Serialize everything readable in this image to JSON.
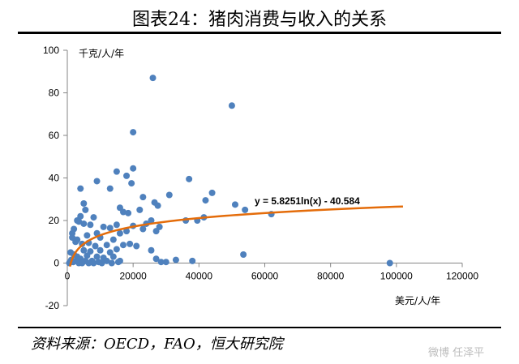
{
  "title": "图表24：猪肉消费与收入的关系",
  "source": "资料来源：OECD，FAO，恒大研究院",
  "watermark": "微博 任泽平",
  "chart_data": {
    "type": "scatter",
    "title": "",
    "xlabel": "美元/人/年",
    "ylabel": "千克/人/年",
    "xlim": [
      0,
      120000
    ],
    "ylim": [
      -20,
      100
    ],
    "xticks": [
      0,
      20000,
      40000,
      60000,
      80000,
      100000,
      120000
    ],
    "xtick_labels": [
      "0",
      "20000",
      "40000",
      "60000",
      "80000",
      "100000",
      "120000"
    ],
    "yticks": [
      -20,
      0,
      20,
      40,
      60,
      80,
      100
    ],
    "ytick_labels": [
      "-20",
      "0",
      "20",
      "40",
      "60",
      "80",
      "100"
    ],
    "grid": false,
    "point_color": "#4f81bd",
    "trend_color": "#e46c0a",
    "trendline": {
      "kind": "logarithmic",
      "a": 5.8251,
      "b": -40.584,
      "x_range": [
        800,
        102000
      ],
      "equation_label": "y = 5.8251ln(x) - 40.584"
    },
    "points": [
      [
        26000,
        87
      ],
      [
        50000,
        74
      ],
      [
        20000,
        61.5
      ],
      [
        20000,
        44.5
      ],
      [
        15000,
        43
      ],
      [
        18000,
        41
      ],
      [
        37000,
        39.5
      ],
      [
        9000,
        38.5
      ],
      [
        19500,
        37.5
      ],
      [
        4000,
        35
      ],
      [
        13000,
        35
      ],
      [
        44000,
        33
      ],
      [
        31000,
        32
      ],
      [
        23000,
        31
      ],
      [
        42000,
        29.5
      ],
      [
        26500,
        28.5
      ],
      [
        5000,
        28
      ],
      [
        27500,
        27
      ],
      [
        51000,
        27.5
      ],
      [
        16000,
        26
      ],
      [
        5500,
        25
      ],
      [
        22000,
        25
      ],
      [
        17000,
        24
      ],
      [
        18500,
        23.5
      ],
      [
        54000,
        25
      ],
      [
        62000,
        23
      ],
      [
        4000,
        22
      ],
      [
        8000,
        21.5
      ],
      [
        3000,
        20
      ],
      [
        36000,
        20
      ],
      [
        3500,
        19.5
      ],
      [
        39500,
        20
      ],
      [
        25500,
        20
      ],
      [
        41500,
        21.5
      ],
      [
        5000,
        18.5
      ],
      [
        7000,
        18
      ],
      [
        2000,
        16
      ],
      [
        15000,
        18
      ],
      [
        20000,
        17.5
      ],
      [
        24000,
        18.5
      ],
      [
        28000,
        17
      ],
      [
        11000,
        17
      ],
      [
        13000,
        16.5
      ],
      [
        1500,
        14
      ],
      [
        9000,
        14
      ],
      [
        6000,
        13
      ],
      [
        1500,
        12
      ],
      [
        3000,
        11
      ],
      [
        10000,
        12
      ],
      [
        14000,
        11
      ],
      [
        23000,
        16
      ],
      [
        27000,
        15
      ],
      [
        16000,
        14
      ],
      [
        18000,
        15
      ],
      [
        2500,
        10
      ],
      [
        4500,
        9
      ],
      [
        6500,
        9.5
      ],
      [
        8500,
        8
      ],
      [
        12000,
        8.5
      ],
      [
        17000,
        8.5
      ],
      [
        19000,
        9
      ],
      [
        21000,
        8
      ],
      [
        5000,
        6
      ],
      [
        7000,
        5.5
      ],
      [
        10000,
        6
      ],
      [
        13000,
        5
      ],
      [
        15000,
        6.5
      ],
      [
        1000,
        5
      ],
      [
        2000,
        4
      ],
      [
        3000,
        3
      ],
      [
        4000,
        2
      ],
      [
        6000,
        3.5
      ],
      [
        9000,
        3
      ],
      [
        11000,
        2.5
      ],
      [
        14000,
        3
      ],
      [
        1200,
        1.5
      ],
      [
        2500,
        1
      ],
      [
        5500,
        1
      ],
      [
        7500,
        1
      ],
      [
        12000,
        1
      ],
      [
        16000,
        1
      ],
      [
        800,
        0.5
      ],
      [
        1800,
        0.5
      ],
      [
        3500,
        0
      ],
      [
        8000,
        0
      ],
      [
        10500,
        0
      ],
      [
        13500,
        0
      ],
      [
        600,
        0
      ],
      [
        4500,
        0
      ],
      [
        6500,
        0
      ],
      [
        9500,
        0.5
      ],
      [
        15500,
        0.5
      ],
      [
        25500,
        6
      ],
      [
        27000,
        2
      ],
      [
        28500,
        0.5
      ],
      [
        30000,
        0.5
      ],
      [
        33000,
        1.5
      ],
      [
        38000,
        1
      ],
      [
        53500,
        4
      ],
      [
        98000,
        0
      ]
    ]
  }
}
